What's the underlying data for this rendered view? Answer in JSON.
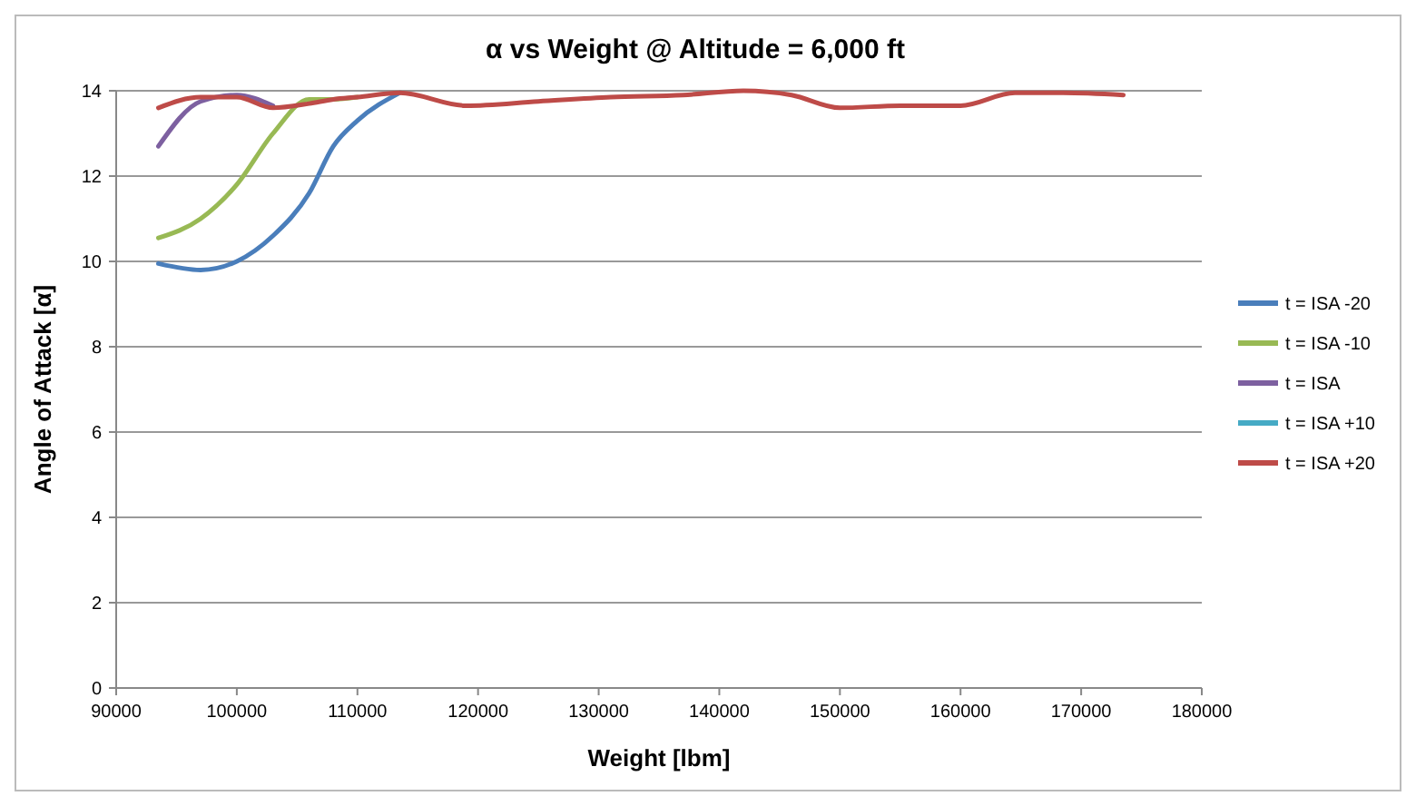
{
  "chart_data": {
    "type": "line",
    "title": "α vs Weight @ Altitude = 6,000 ft",
    "xlabel": "Weight [lbm]",
    "ylabel": "Angle of Attack [α]",
    "x": [
      93500,
      97000,
      100000,
      103000,
      106000,
      108000,
      110000,
      113500,
      119000,
      125000,
      131000,
      137000,
      142000,
      146000,
      150000,
      155000,
      160000,
      164500,
      168500,
      173500
    ],
    "series": [
      {
        "name": "t = ISA -20",
        "color": "#4a7ebb",
        "values": [
          9.95,
          9.8,
          10.0,
          10.6,
          11.6,
          12.7,
          13.3,
          13.95,
          null,
          null,
          null,
          null,
          null,
          null,
          null,
          null,
          null,
          null,
          null,
          null
        ]
      },
      {
        "name": "t = ISA -10",
        "color": "#98b954",
        "values": [
          10.55,
          11.0,
          11.8,
          13.0,
          13.8,
          13.8,
          13.85,
          null,
          null,
          null,
          null,
          null,
          null,
          null,
          null,
          null,
          null,
          null,
          null,
          null
        ]
      },
      {
        "name": "t = ISA",
        "color": "#7d60a0",
        "values": [
          12.7,
          13.75,
          13.9,
          13.65,
          null,
          null,
          null,
          null,
          null,
          null,
          null,
          null,
          null,
          null,
          null,
          null,
          null,
          null,
          null,
          null
        ]
      },
      {
        "name": "t = ISA +10",
        "color": "#46aac5",
        "values": [
          null,
          null,
          null,
          null,
          null,
          null,
          null,
          null,
          null,
          null,
          null,
          null,
          null,
          null,
          null,
          null,
          null,
          null,
          null,
          null
        ]
      },
      {
        "name": "t = ISA +20",
        "color": "#be4b48",
        "values": [
          13.6,
          13.85,
          13.85,
          13.6,
          13.7,
          13.8,
          13.85,
          13.95,
          13.65,
          13.75,
          13.85,
          13.9,
          14.0,
          13.9,
          13.6,
          13.65,
          13.65,
          13.95,
          13.95,
          13.9
        ]
      }
    ],
    "xlim": [
      90000,
      180000
    ],
    "xticks": [
      90000,
      100000,
      110000,
      120000,
      130000,
      140000,
      150000,
      160000,
      170000,
      180000
    ],
    "ylim": [
      0,
      14
    ],
    "yticks": [
      0,
      2,
      4,
      6,
      8,
      10,
      12,
      14
    ],
    "grid": "y",
    "legend": "right",
    "marker": "none",
    "line_style": "solid"
  }
}
